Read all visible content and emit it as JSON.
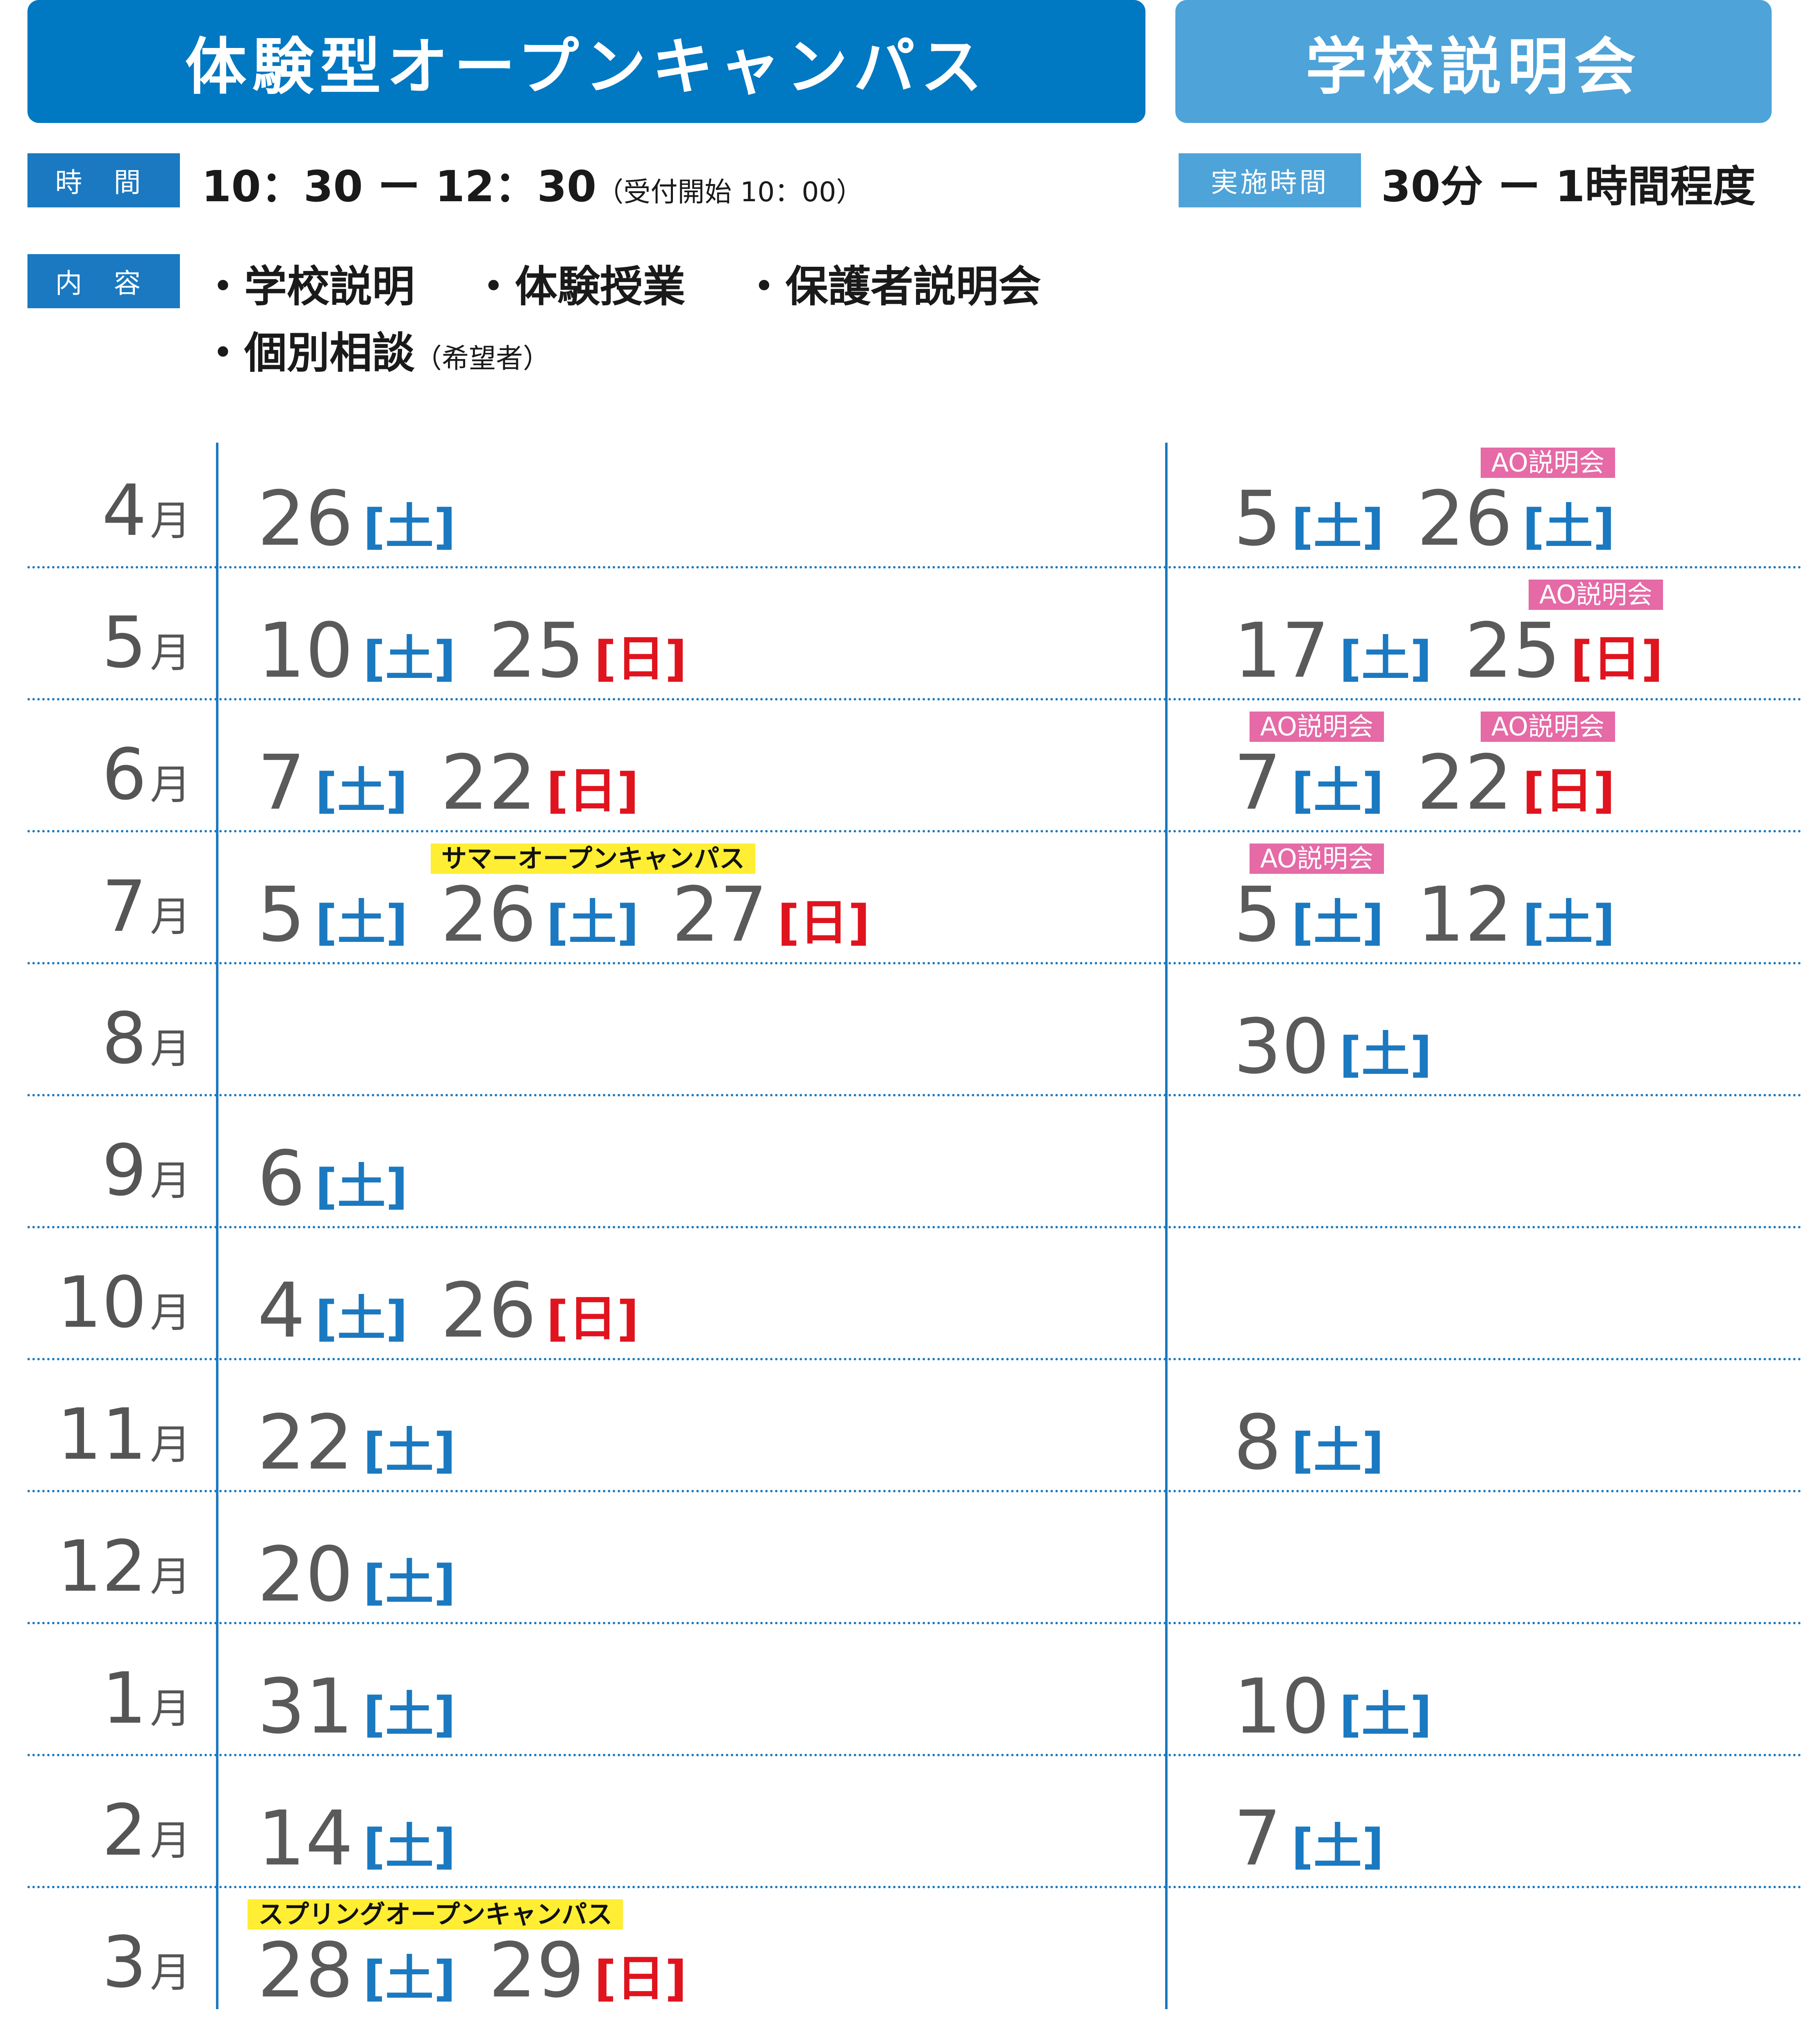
{
  "headers": {
    "open_campus": "体験型オープンキャンパス",
    "school_session": "学校説明会"
  },
  "open_campus_info": {
    "time_label": "時 間",
    "time_value": "10：30 ー 12：30",
    "time_note": "（受付開始 10：00）",
    "content_label": "内 容",
    "content_line1": "・学校説明　 ・体験授業　 ・保護者説明会",
    "content_line2": "・個別相談",
    "content_note": "（希望者）"
  },
  "school_session_info": {
    "time_label": "実施時間",
    "time_value": "30分 ー 1時間程度"
  },
  "month_unit": "月",
  "colors": {
    "blue": "#1a79c0",
    "light_blue": "#4ea3d8",
    "saturday": "#1a79c0",
    "sunday": "#e0141e",
    "ao_tag": "#e56aa6",
    "special_tag": "#ffee33"
  },
  "schedule": [
    {
      "month": "4",
      "open_campus": [
        {
          "day": "26",
          "weekday": "土"
        }
      ],
      "school_session": [
        {
          "day": "5",
          "weekday": "土"
        },
        {
          "day": "26",
          "weekday": "土",
          "tag": "AO説明会"
        }
      ]
    },
    {
      "month": "5",
      "open_campus": [
        {
          "day": "10",
          "weekday": "土"
        },
        {
          "day": "25",
          "weekday": "日"
        }
      ],
      "school_session": [
        {
          "day": "17",
          "weekday": "土"
        },
        {
          "day": "25",
          "weekday": "日",
          "tag": "AO説明会"
        }
      ]
    },
    {
      "month": "6",
      "open_campus": [
        {
          "day": "7",
          "weekday": "土"
        },
        {
          "day": "22",
          "weekday": "日"
        }
      ],
      "school_session": [
        {
          "day": "7",
          "weekday": "土",
          "tag": "AO説明会"
        },
        {
          "day": "22",
          "weekday": "日",
          "tag": "AO説明会"
        }
      ]
    },
    {
      "month": "7",
      "open_campus": [
        {
          "day": "5",
          "weekday": "土"
        },
        {
          "day": "26",
          "weekday": "土",
          "special": "サマーオープンキャンパス"
        },
        {
          "day": "27",
          "weekday": "日"
        }
      ],
      "school_session": [
        {
          "day": "5",
          "weekday": "土",
          "tag": "AO説明会"
        },
        {
          "day": "12",
          "weekday": "土"
        }
      ]
    },
    {
      "month": "8",
      "open_campus": [],
      "school_session": [
        {
          "day": "30",
          "weekday": "土"
        }
      ]
    },
    {
      "month": "9",
      "open_campus": [
        {
          "day": "6",
          "weekday": "土"
        }
      ],
      "school_session": []
    },
    {
      "month": "10",
      "open_campus": [
        {
          "day": "4",
          "weekday": "土"
        },
        {
          "day": "26",
          "weekday": "日"
        }
      ],
      "school_session": []
    },
    {
      "month": "11",
      "open_campus": [
        {
          "day": "22",
          "weekday": "土"
        }
      ],
      "school_session": [
        {
          "day": "8",
          "weekday": "土"
        }
      ]
    },
    {
      "month": "12",
      "open_campus": [
        {
          "day": "20",
          "weekday": "土"
        }
      ],
      "school_session": []
    },
    {
      "month": "1",
      "open_campus": [
        {
          "day": "31",
          "weekday": "土"
        }
      ],
      "school_session": [
        {
          "day": "10",
          "weekday": "土"
        }
      ]
    },
    {
      "month": "2",
      "open_campus": [
        {
          "day": "14",
          "weekday": "土"
        }
      ],
      "school_session": [
        {
          "day": "7",
          "weekday": "土"
        }
      ]
    },
    {
      "month": "3",
      "open_campus": [
        {
          "day": "28",
          "weekday": "土",
          "special": "スプリングオープンキャンパス"
        },
        {
          "day": "29",
          "weekday": "日"
        }
      ],
      "school_session": []
    }
  ]
}
